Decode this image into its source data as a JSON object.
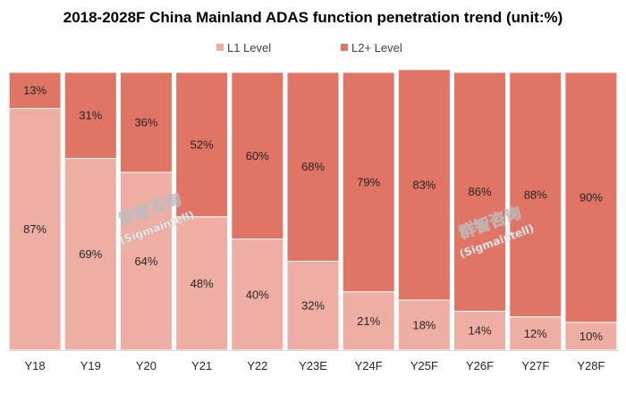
{
  "chart_data": {
    "type": "bar",
    "stacked": true,
    "title": "2018-2028F China Mainland ADAS function penetration trend (unit:%)",
    "categories": [
      "Y18",
      "Y19",
      "Y20",
      "Y21",
      "Y22",
      "Y23E",
      "Y24F",
      "Y25F",
      "Y26F",
      "Y27F",
      "Y28F"
    ],
    "series": [
      {
        "name": "L1 Level",
        "color": "#efaea3",
        "values": [
          87,
          69,
          64,
          48,
          40,
          32,
          21,
          18,
          14,
          12,
          10
        ]
      },
      {
        "name": "L2+ Level",
        "color": "#e07565",
        "values": [
          13,
          31,
          36,
          52,
          60,
          68,
          79,
          83,
          86,
          88,
          90
        ]
      }
    ],
    "ylim": [
      0,
      100
    ],
    "value_suffix": "%",
    "legend_position": "top-center",
    "grid": false
  },
  "watermark": {
    "chinese": "群智咨询",
    "latin": "(Sigmaintell)"
  }
}
